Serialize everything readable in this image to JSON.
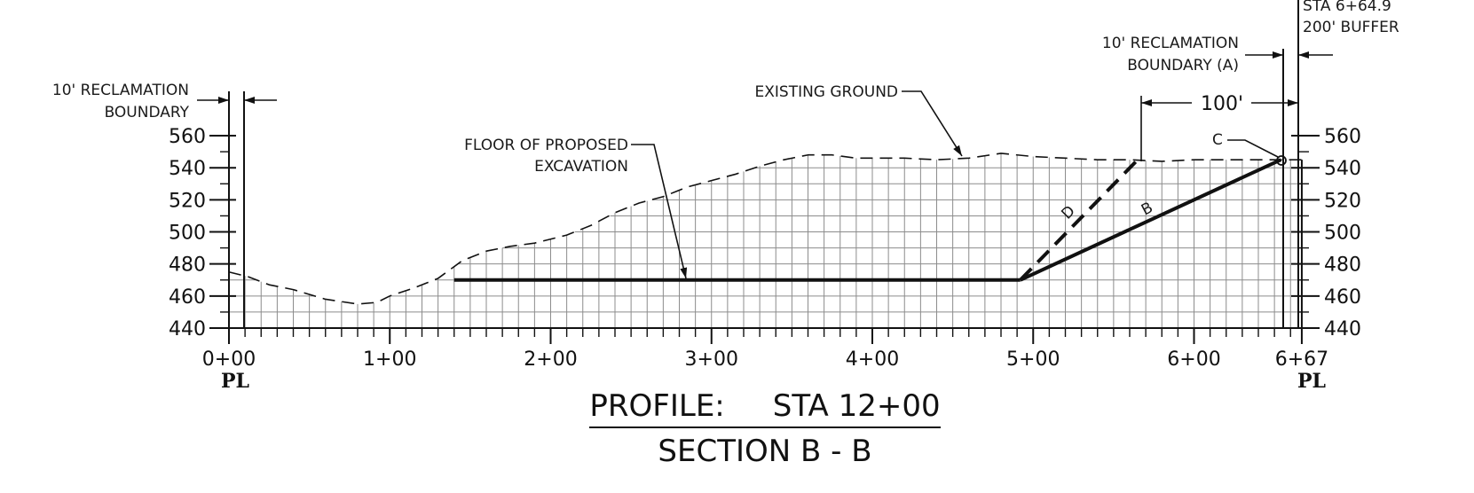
{
  "title": "PROFILE:     STA 12+00",
  "subtitle": "SECTION B - B",
  "labels": {
    "left_boundary": [
      "10' RECLAMATION",
      "BOUNDARY"
    ],
    "right_boundary": [
      "10' RECLAMATION",
      "BOUNDARY (A)"
    ],
    "buffer": [
      "STA 6+64.9",
      "200' BUFFER"
    ],
    "existing_ground": "EXISTING GROUND",
    "floor": [
      "FLOOR OF PROPOSED",
      "EXCAVATION"
    ],
    "dim_100": "100'",
    "point_c": "C",
    "line_b": "B",
    "line_d": "D",
    "property_line": "PL"
  },
  "chart_data": {
    "type": "line",
    "xlabel": "",
    "ylabel": "",
    "x_ticks": [
      "0+00",
      "1+00",
      "2+00",
      "3+00",
      "4+00",
      "5+00",
      "6+00",
      "6+67"
    ],
    "x_tick_values": [
      0,
      100,
      200,
      300,
      400,
      500,
      600,
      667
    ],
    "y_ticks": [
      440,
      460,
      480,
      500,
      520,
      540,
      560
    ],
    "xlim": [
      0,
      667
    ],
    "ylim": [
      440,
      560
    ],
    "series": [
      {
        "name": "EXISTING GROUND",
        "style": "dashed",
        "x": [
          0,
          12,
          25,
          40,
          60,
          80,
          92,
          100,
          115,
          130,
          145,
          160,
          175,
          190,
          210,
          225,
          240,
          255,
          270,
          285,
          300,
          315,
          330,
          345,
          360,
          375,
          390,
          405,
          420,
          440,
          460,
          480,
          500,
          520,
          540,
          560,
          580,
          600,
          620,
          640,
          660,
          667
        ],
        "y": [
          475,
          472,
          467,
          464,
          458,
          455,
          456,
          460,
          465,
          471,
          482,
          488,
          491,
          493,
          498,
          504,
          512,
          518,
          522,
          528,
          532,
          536,
          541,
          545,
          548,
          548,
          546,
          546,
          546,
          545,
          546,
          549,
          547,
          546,
          545,
          545,
          544,
          545,
          545,
          545,
          545,
          545
        ]
      },
      {
        "name": "FLOOR OF PROPOSED EXCAVATION",
        "style": "solid",
        "x": [
          140,
          492
        ],
        "y": [
          470,
          470
        ]
      },
      {
        "name": "B",
        "style": "solid",
        "x": [
          492,
          654
        ],
        "y": [
          470,
          545
        ]
      },
      {
        "name": "D",
        "style": "dashed",
        "x": [
          492,
          565
        ],
        "y": [
          470,
          545
        ]
      }
    ],
    "markers": [
      {
        "label": "C",
        "x": 654,
        "y": 545
      }
    ],
    "grid": true,
    "excavation_area_hatched": true,
    "dimension": {
      "label": "100'",
      "from": 565,
      "to": 667
    }
  },
  "colors": {
    "line": "#111111",
    "grid": "#8c8c8c"
  }
}
